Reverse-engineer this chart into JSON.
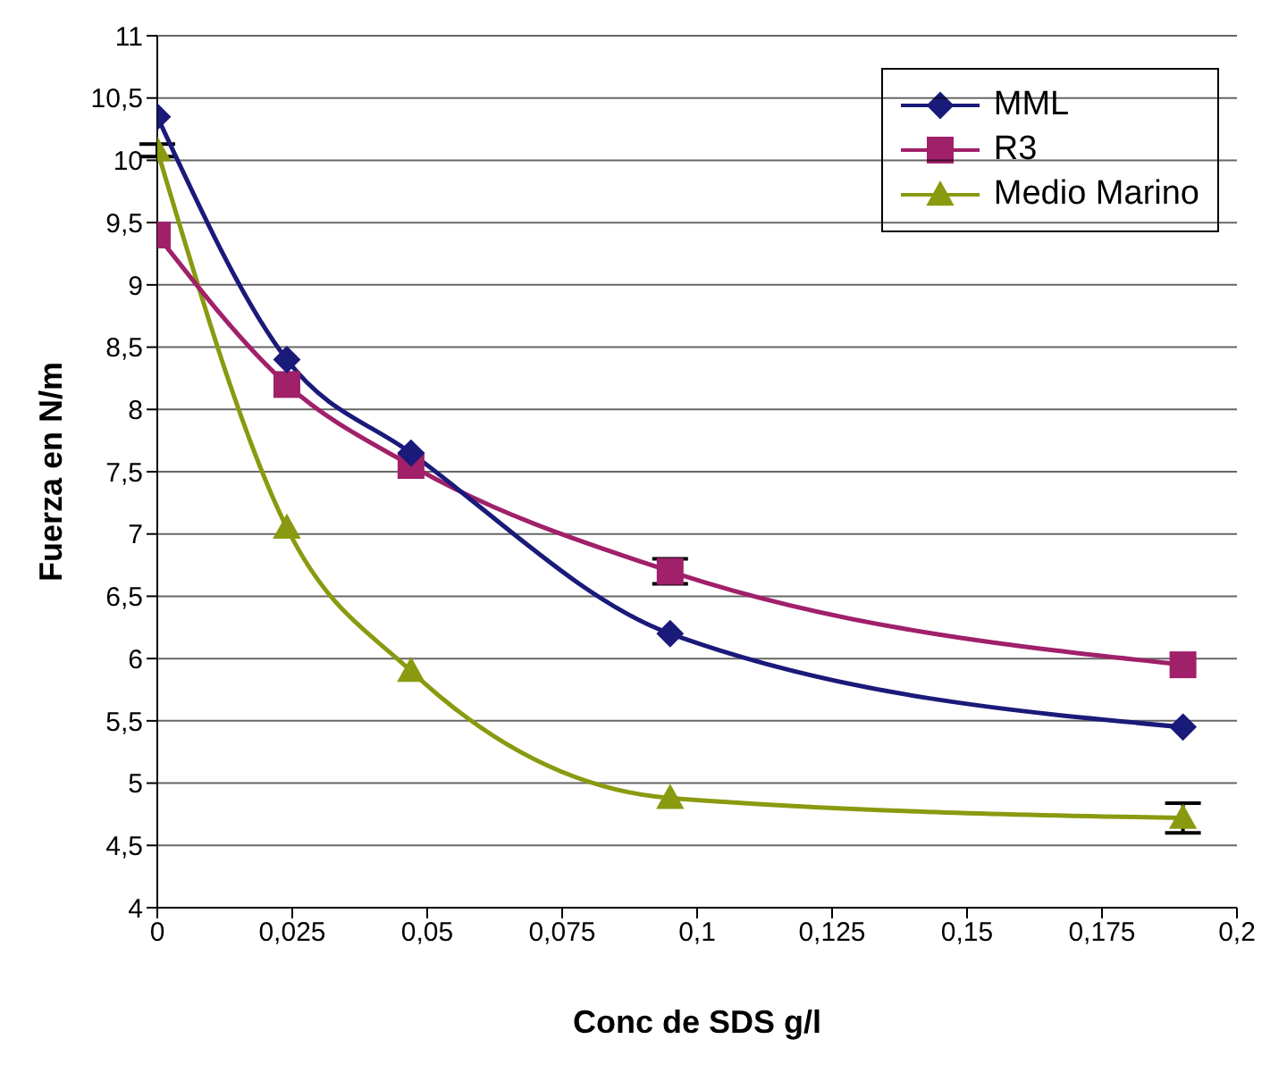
{
  "chart_data": {
    "type": "line",
    "xlabel": "Conc de SDS g/l",
    "ylabel": "Fuerza en N/m",
    "x": [
      0,
      0.024,
      0.047,
      0.095,
      0.19
    ],
    "series": [
      {
        "name": "MML",
        "color": "#1a1a7a",
        "marker": "diamond",
        "values": [
          10.35,
          8.4,
          7.65,
          6.2,
          5.45
        ]
      },
      {
        "name": "R3",
        "color": "#a0206a",
        "marker": "square",
        "values": [
          9.4,
          8.2,
          7.55,
          6.7,
          5.95
        ],
        "errors": [
          null,
          null,
          null,
          0.1,
          null
        ]
      },
      {
        "name": "Medio Marino",
        "color": "#8a9a10",
        "marker": "triangle",
        "values": [
          10.08,
          7.05,
          5.9,
          4.88,
          4.72
        ],
        "errors": [
          0.05,
          null,
          null,
          null,
          0.12
        ]
      }
    ],
    "xlim": [
      0,
      0.2
    ],
    "xticks": [
      0,
      {
        "value": 0.025,
        "label": "0,025"
      },
      {
        "value": 0.05,
        "label": "0,05"
      },
      {
        "value": 0.075,
        "label": "0,075"
      },
      {
        "value": 0.1,
        "label": "0,1"
      },
      {
        "value": 0.125,
        "label": "0,125"
      },
      {
        "value": 0.15,
        "label": "0,15"
      },
      {
        "value": 0.175,
        "label": "0,175"
      },
      {
        "value": 0.2,
        "label": "0,2"
      }
    ],
    "ylim": [
      4,
      11
    ],
    "yticks": [
      4,
      {
        "value": 4.5,
        "label": "4,5"
      },
      5,
      {
        "value": 5.5,
        "label": "5,5"
      },
      6,
      {
        "value": 6.5,
        "label": "6,5"
      },
      7,
      {
        "value": 7.5,
        "label": "7,5"
      },
      8,
      {
        "value": 8.5,
        "label": "8,5"
      },
      9,
      {
        "value": 9.5,
        "label": "9,5"
      },
      10,
      {
        "value": 10.5,
        "label": "10,5"
      },
      11
    ],
    "grid": "y",
    "legend": "top right",
    "line_style": "solid"
  }
}
